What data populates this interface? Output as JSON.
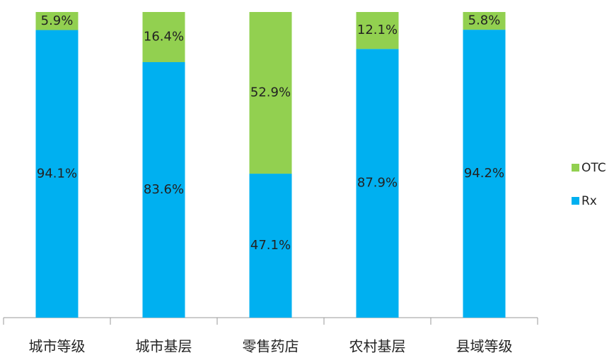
{
  "chart_data": {
    "type": "bar",
    "stacked": true,
    "categories": [
      "城市等级",
      "城市基层",
      "零售药店",
      "农村基层",
      "县域等级"
    ],
    "series": [
      {
        "name": "Rx",
        "color": "#00b0f0",
        "values": [
          94.1,
          83.6,
          47.1,
          87.9,
          94.2
        ],
        "value_labels": [
          "94.1%",
          "83.6%",
          "47.1%",
          "87.9%",
          "94.2%"
        ]
      },
      {
        "name": "OTC",
        "color": "#92d050",
        "values": [
          5.9,
          16.4,
          52.9,
          12.1,
          5.8
        ],
        "value_labels": [
          "5.9%",
          "16.4%",
          "52.9%",
          "12.1%",
          "5.8%"
        ]
      }
    ],
    "legend": "right"
  }
}
